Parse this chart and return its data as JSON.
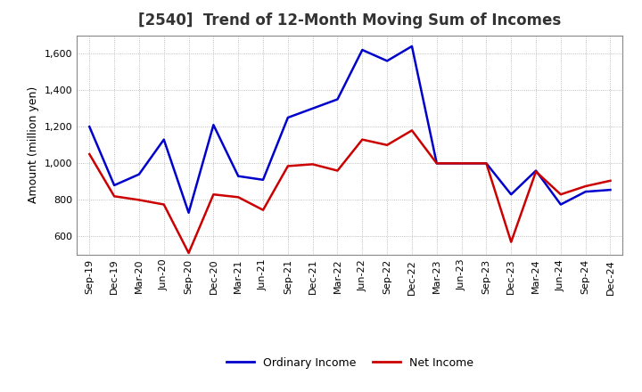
{
  "title": "[2540]  Trend of 12-Month Moving Sum of Incomes",
  "ylabel": "Amount (million yen)",
  "labels": [
    "Sep-19",
    "Dec-19",
    "Mar-20",
    "Jun-20",
    "Sep-20",
    "Dec-20",
    "Mar-21",
    "Jun-21",
    "Sep-21",
    "Dec-21",
    "Mar-22",
    "Jun-22",
    "Sep-22",
    "Dec-22",
    "Mar-23",
    "Jun-23",
    "Sep-23",
    "Dec-23",
    "Mar-24",
    "Jun-24",
    "Sep-24",
    "Dec-24"
  ],
  "ordinary_income": [
    1200,
    880,
    940,
    1130,
    730,
    1210,
    930,
    910,
    1250,
    1300,
    1350,
    1620,
    1560,
    1640,
    1000,
    1000,
    1000,
    830,
    960,
    775,
    845,
    855
  ],
  "net_income": [
    1050,
    820,
    800,
    775,
    510,
    830,
    815,
    745,
    985,
    995,
    960,
    1130,
    1100,
    1180,
    1000,
    1000,
    1000,
    570,
    955,
    830,
    875,
    905
  ],
  "ordinary_color": "#0000cc",
  "net_color": "#cc0000",
  "background_color": "#ffffff",
  "grid_color": "#aaaaaa",
  "ylim": [
    500,
    1700
  ],
  "yticks": [
    600,
    800,
    1000,
    1200,
    1400,
    1600
  ],
  "legend_ordinary": "Ordinary Income",
  "legend_net": "Net Income",
  "title_fontsize": 12,
  "axis_label_fontsize": 9,
  "tick_fontsize": 8
}
